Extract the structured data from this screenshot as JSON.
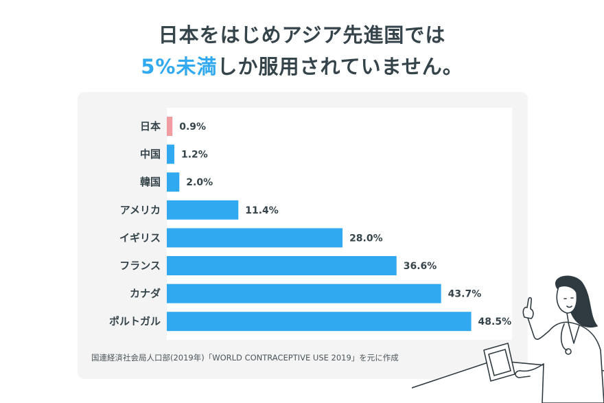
{
  "headline": {
    "line1": "日本をはじめアジア先進国では",
    "line2_accent": "5%未満",
    "line2_rest": "しか服用されていません。"
  },
  "source": "国連経済社会局人口部(2019年)「WORLD CONTRACEPTIVE USE 2019」を元に作成",
  "colors": {
    "japan_bar": "#f19ba3",
    "bar": "#31a9f1",
    "accent_text": "#31a9f1",
    "panel_bg": "#f4f4f4"
  },
  "chart_data": {
    "type": "bar",
    "orientation": "horizontal",
    "categories": [
      "日本",
      "中国",
      "韓国",
      "アメリカ",
      "イギリス",
      "フランス",
      "カナダ",
      "ポルトガル"
    ],
    "values": [
      0.9,
      1.2,
      2.0,
      11.4,
      28.0,
      36.6,
      43.7,
      48.5
    ],
    "value_labels": [
      "0.9%",
      "1.2%",
      "2.0%",
      "11.4%",
      "28.0%",
      "36.6%",
      "43.7%",
      "48.5%"
    ],
    "unit": "%",
    "xlim": [
      0,
      55
    ],
    "title": "",
    "xlabel": "",
    "ylabel": "",
    "grid": false,
    "legend": "none"
  }
}
